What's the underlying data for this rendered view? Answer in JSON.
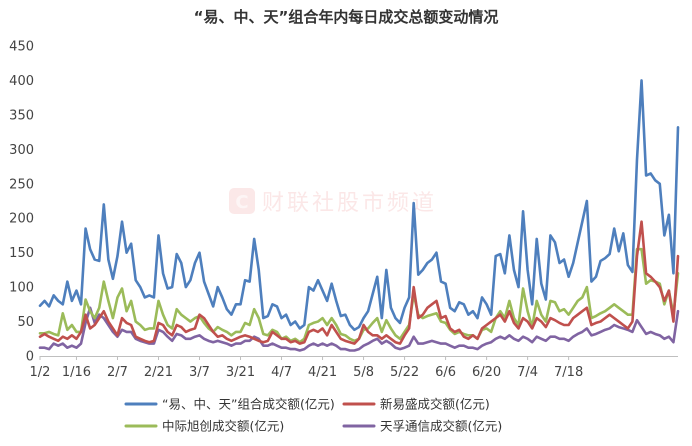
{
  "chart_data": {
    "type": "line",
    "title": "“易、中、天”组合年内每日成交总额变动情况",
    "xlabel": "",
    "ylabel": "",
    "ylim": [
      0,
      450
    ],
    "yticks": [
      0,
      50,
      100,
      150,
      200,
      250,
      300,
      350,
      400,
      450
    ],
    "x_tick_labels": [
      "1/2",
      "1/16",
      "2/7",
      "2/21",
      "3/7",
      "3/21",
      "4/7",
      "4/21",
      "5/8",
      "5/22",
      "6/6",
      "6/20",
      "7/4",
      "7/18"
    ],
    "x_tick_indices": [
      0,
      8,
      17,
      26,
      35,
      44,
      53,
      62,
      71,
      80,
      89,
      98,
      107,
      116
    ],
    "grid": false,
    "legend": "bottom",
    "watermark": {
      "text": "财联社股市频道",
      "logo_letter": "C"
    },
    "series": [
      {
        "name": "“易、中、天”组合成交额(亿元)",
        "color": "#4e7fbd",
        "values": [
          73,
          80,
          72,
          88,
          80,
          75,
          108,
          80,
          95,
          75,
          185,
          155,
          140,
          138,
          220,
          140,
          112,
          145,
          195,
          150,
          163,
          110,
          100,
          85,
          88,
          85,
          175,
          120,
          98,
          100,
          148,
          135,
          100,
          110,
          135,
          150,
          108,
          90,
          72,
          100,
          85,
          68,
          60,
          75,
          75,
          110,
          108,
          170,
          125,
          55,
          58,
          75,
          72,
          55,
          60,
          45,
          50,
          40,
          45,
          100,
          95,
          110,
          95,
          80,
          105,
          80,
          58,
          60,
          45,
          38,
          42,
          55,
          65,
          90,
          115,
          55,
          125,
          70,
          55,
          48,
          70,
          85,
          222,
          118,
          125,
          135,
          140,
          150,
          108,
          105,
          70,
          65,
          78,
          75,
          60,
          65,
          55,
          85,
          75,
          60,
          145,
          148,
          120,
          175,
          125,
          100,
          210,
          125,
          75,
          170,
          105,
          82,
          175,
          165,
          135,
          140,
          115,
          135,
          165,
          195,
          225,
          108,
          115,
          138,
          142,
          148,
          185,
          152,
          178,
          132,
          122,
          285,
          400,
          262,
          265,
          255,
          250,
          175,
          205,
          120,
          332
        ]
      },
      {
        "name": "新易盛成交额(亿元)",
        "color": "#c0504d",
        "values": [
          28,
          32,
          28,
          25,
          22,
          28,
          25,
          30,
          25,
          35,
          60,
          40,
          45,
          55,
          65,
          50,
          40,
          30,
          55,
          48,
          45,
          28,
          25,
          22,
          20,
          22,
          48,
          45,
          35,
          30,
          45,
          42,
          35,
          38,
          40,
          60,
          55,
          45,
          35,
          28,
          30,
          25,
          22,
          25,
          28,
          30,
          28,
          25,
          22,
          20,
          22,
          35,
          30,
          25,
          25,
          20,
          22,
          18,
          20,
          35,
          38,
          35,
          40,
          30,
          45,
          35,
          25,
          22,
          20,
          18,
          25,
          45,
          35,
          30,
          30,
          25,
          30,
          25,
          20,
          18,
          30,
          40,
          100,
          55,
          60,
          70,
          75,
          80,
          55,
          58,
          40,
          35,
          38,
          28,
          25,
          30,
          25,
          40,
          45,
          50,
          55,
          60,
          50,
          65,
          48,
          40,
          55,
          50,
          40,
          55,
          50,
          42,
          55,
          52,
          48,
          45,
          45,
          55,
          60,
          65,
          70,
          45,
          48,
          50,
          55,
          60,
          55,
          50,
          45,
          40,
          50,
          145,
          195,
          120,
          115,
          108,
          100,
          80,
          95,
          50,
          145
        ]
      },
      {
        "name": "中际旭创成交额(亿元)",
        "color": "#9bbb59",
        "values": [
          33,
          33,
          35,
          32,
          30,
          62,
          38,
          45,
          35,
          35,
          82,
          65,
          55,
          70,
          108,
          80,
          55,
          85,
          98,
          65,
          80,
          50,
          45,
          38,
          40,
          40,
          80,
          60,
          45,
          40,
          68,
          60,
          55,
          50,
          55,
          58,
          48,
          40,
          35,
          42,
          38,
          35,
          30,
          35,
          35,
          48,
          45,
          68,
          55,
          32,
          30,
          38,
          35,
          25,
          28,
          22,
          25,
          20,
          25,
          45,
          48,
          50,
          55,
          45,
          55,
          45,
          32,
          30,
          25,
          22,
          25,
          38,
          40,
          48,
          55,
          35,
          52,
          40,
          30,
          25,
          35,
          45,
          90,
          60,
          55,
          58,
          60,
          62,
          50,
          48,
          38,
          32,
          35,
          32,
          30,
          30,
          25,
          38,
          40,
          35,
          55,
          65,
          55,
          80,
          55,
          45,
          98,
          65,
          42,
          80,
          60,
          50,
          80,
          78,
          65,
          68,
          60,
          70,
          80,
          85,
          100,
          55,
          58,
          62,
          65,
          70,
          75,
          70,
          65,
          60,
          60,
          155,
          155,
          105,
          110,
          108,
          105,
          75,
          95,
          60,
          120
        ]
      },
      {
        "name": "天孚通信成交额(亿元)",
        "color": "#8064a2",
        "values": [
          12,
          12,
          10,
          18,
          15,
          18,
          12,
          15,
          12,
          18,
          48,
          70,
          48,
          60,
          55,
          45,
          35,
          28,
          38,
          35,
          35,
          25,
          22,
          20,
          18,
          18,
          38,
          35,
          28,
          22,
          32,
          30,
          25,
          25,
          28,
          30,
          25,
          22,
          20,
          22,
          20,
          18,
          15,
          18,
          18,
          22,
          22,
          28,
          25,
          15,
          15,
          18,
          15,
          12,
          12,
          10,
          10,
          8,
          10,
          15,
          18,
          15,
          18,
          15,
          18,
          15,
          10,
          10,
          8,
          8,
          10,
          15,
          18,
          22,
          25,
          18,
          22,
          18,
          12,
          10,
          12,
          15,
          28,
          18,
          18,
          20,
          22,
          20,
          18,
          18,
          15,
          12,
          15,
          15,
          12,
          12,
          10,
          15,
          18,
          20,
          25,
          28,
          25,
          30,
          25,
          22,
          28,
          25,
          20,
          28,
          25,
          22,
          28,
          28,
          25,
          25,
          22,
          28,
          32,
          35,
          40,
          30,
          32,
          35,
          38,
          40,
          45,
          42,
          40,
          38,
          35,
          52,
          42,
          32,
          35,
          32,
          30,
          25,
          28,
          20,
          65
        ]
      }
    ]
  }
}
